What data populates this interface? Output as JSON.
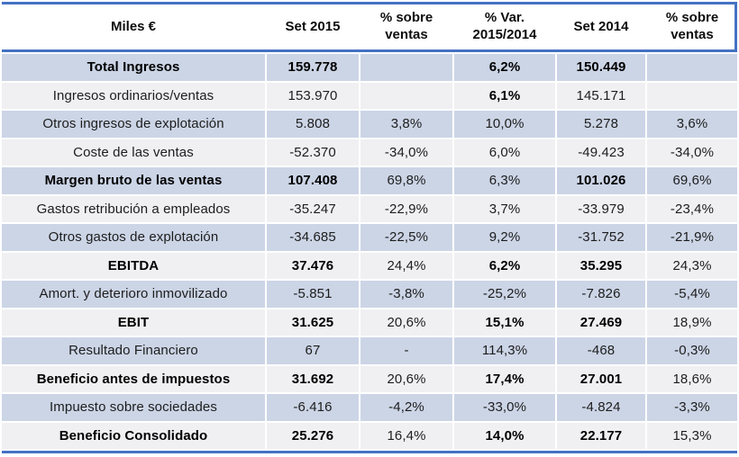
{
  "table": {
    "title_column_header": "Miles €",
    "headers": [
      "Miles €",
      "Set 2015",
      "% sobre\nventas",
      "% Var.\n2015/2014",
      "Set 2014",
      "% sobre\nventas"
    ]
  },
  "rows": [
    {
      "label": "Total Ingresos",
      "set2015": "159.778",
      "pct_ventas1": "",
      "var_pct": "6,2%",
      "set2014": "150.449",
      "pct_ventas2": "",
      "emphasis": true,
      "var_bold": true
    },
    {
      "label": "Ingresos ordinarios/ventas",
      "set2015": "153.970",
      "pct_ventas1": "",
      "var_pct": "6,1%",
      "set2014": "145.171",
      "pct_ventas2": "",
      "emphasis": false,
      "var_bold": true
    },
    {
      "label": "Otros ingresos de explotación",
      "set2015": "5.808",
      "pct_ventas1": "3,8%",
      "var_pct": "10,0%",
      "set2014": "5.278",
      "pct_ventas2": "3,6%",
      "emphasis": false,
      "var_bold": false
    },
    {
      "label": "Coste de las ventas",
      "set2015": "-52.370",
      "pct_ventas1": "-34,0%",
      "var_pct": "6,0%",
      "set2014": "-49.423",
      "pct_ventas2": "-34,0%",
      "emphasis": false,
      "var_bold": false
    },
    {
      "label": "Margen bruto de las ventas",
      "set2015": "107.408",
      "pct_ventas1": "69,8%",
      "var_pct": "6,3%",
      "set2014": "101.026",
      "pct_ventas2": "69,6%",
      "emphasis": true,
      "var_bold": false
    },
    {
      "label": "Gastos retribución a empleados",
      "set2015": "-35.247",
      "pct_ventas1": "-22,9%",
      "var_pct": "3,7%",
      "set2014": "-33.979",
      "pct_ventas2": "-23,4%",
      "emphasis": false,
      "var_bold": false
    },
    {
      "label": "Otros gastos de explotación",
      "set2015": "-34.685",
      "pct_ventas1": "-22,5%",
      "var_pct": "9,2%",
      "set2014": "-31.752",
      "pct_ventas2": "-21,9%",
      "emphasis": false,
      "var_bold": false
    },
    {
      "label": "EBITDA",
      "set2015": "37.476",
      "pct_ventas1": "24,4%",
      "var_pct": "6,2%",
      "set2014": "35.295",
      "pct_ventas2": "24,3%",
      "emphasis": true,
      "var_bold": true
    },
    {
      "label": "Amort. y deterioro inmovilizado",
      "set2015": "-5.851",
      "pct_ventas1": "-3,8%",
      "var_pct": "-25,2%",
      "set2014": "-7.826",
      "pct_ventas2": "-5,4%",
      "emphasis": false,
      "var_bold": false
    },
    {
      "label": "EBIT",
      "set2015": "31.625",
      "pct_ventas1": "20,6%",
      "var_pct": "15,1%",
      "set2014": "27.469",
      "pct_ventas2": "18,9%",
      "emphasis": true,
      "var_bold": true
    },
    {
      "label": "Resultado Financiero",
      "set2015": "67",
      "pct_ventas1": "-",
      "var_pct": "114,3%",
      "set2014": "-468",
      "pct_ventas2": "-0,3%",
      "emphasis": false,
      "var_bold": false
    },
    {
      "label": "Beneficio antes de impuestos",
      "set2015": "31.692",
      "pct_ventas1": "20,6%",
      "var_pct": "17,4%",
      "set2014": "27.001",
      "pct_ventas2": "18,6%",
      "emphasis": true,
      "var_bold": true
    },
    {
      "label": "Impuesto sobre sociedades",
      "set2015": "-6.416",
      "pct_ventas1": "-4,2%",
      "var_pct": "-33,0%",
      "set2014": "-4.824",
      "pct_ventas2": "-3,3%",
      "emphasis": false,
      "var_bold": false
    },
    {
      "label": "Beneficio Consolidado",
      "set2015": "25.276",
      "pct_ventas1": "16,4%",
      "var_pct": "14,0%",
      "set2014": "22.177",
      "pct_ventas2": "15,3%",
      "emphasis": true,
      "var_bold": true
    }
  ],
  "colors": {
    "accent_rule": "#4472C4",
    "row_blue": "#CCD5E6",
    "row_light": "#F0F0F2",
    "text": "#1d1d1d"
  }
}
